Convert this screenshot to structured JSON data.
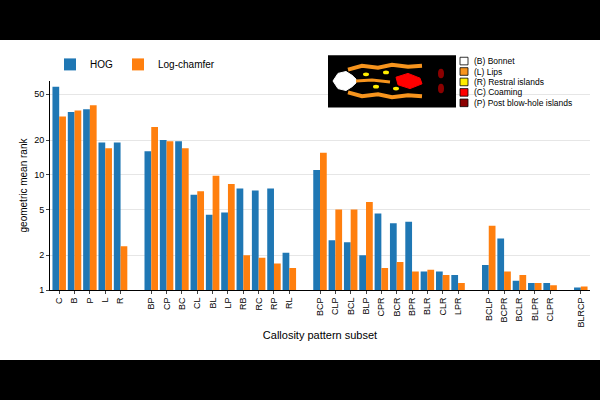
{
  "chart_data": {
    "type": "bar",
    "x_label": "Callosity pattern subset",
    "y_label": "geometric mean rank",
    "categories": [
      "C",
      "B",
      "P",
      "L",
      "R",
      null,
      "BP",
      "CP",
      "BC",
      "CL",
      "BL",
      "LP",
      "RB",
      "RC",
      "RP",
      "RL",
      null,
      "BCP",
      "CLP",
      "BCL",
      "BLP",
      "CPR",
      "BCR",
      "BPR",
      "BLR",
      "CLR",
      "LPR",
      null,
      "BCLP",
      "BCPR",
      "BCLR",
      "BLPR",
      "CLPR",
      null,
      "BLRCP"
    ],
    "series": [
      {
        "name": "HOG",
        "color": "#1f77b4",
        "values": [
          58,
          35,
          37,
          19,
          19,
          null,
          16,
          20,
          19.5,
          6.7,
          4.5,
          4.7,
          7.6,
          7.3,
          7.6,
          2.1,
          null,
          11,
          2.7,
          2.6,
          2.0,
          4.6,
          3.8,
          3.9,
          1.45,
          1.45,
          1.35,
          null,
          1.65,
          2.8,
          1.2,
          1.15,
          1.15,
          null,
          1.05
        ]
      },
      {
        "name": "Log-chamfer",
        "color": "#ff7f0e",
        "values": [
          32,
          36,
          40,
          17,
          2.4,
          null,
          26,
          19.5,
          17,
          7.2,
          9.8,
          8.3,
          2.0,
          1.9,
          1.7,
          1.55,
          null,
          15.5,
          5.0,
          5.0,
          5.8,
          1.55,
          1.75,
          1.45,
          1.5,
          1.35,
          1.15,
          null,
          3.6,
          1.45,
          1.35,
          1.15,
          1.1,
          null,
          1.07
        ]
      }
    ],
    "ylim": [
      1,
      65
    ],
    "yticks": [
      1,
      2,
      5,
      10,
      20,
      50
    ],
    "log": "y",
    "grid": true,
    "legend": "top left",
    "annotations": [
      {
        "text": "(B) Bonnet",
        "color": "#ffffff"
      },
      {
        "text": "(L) Lips",
        "color": "#f7941d"
      },
      {
        "text": "(R) Restral islands",
        "color": "#ffee00"
      },
      {
        "text": "(C) Coaming",
        "color": "#ff0000"
      },
      {
        "text": "(P) Post blow-hole islands",
        "color": "#8b0000"
      }
    ]
  }
}
